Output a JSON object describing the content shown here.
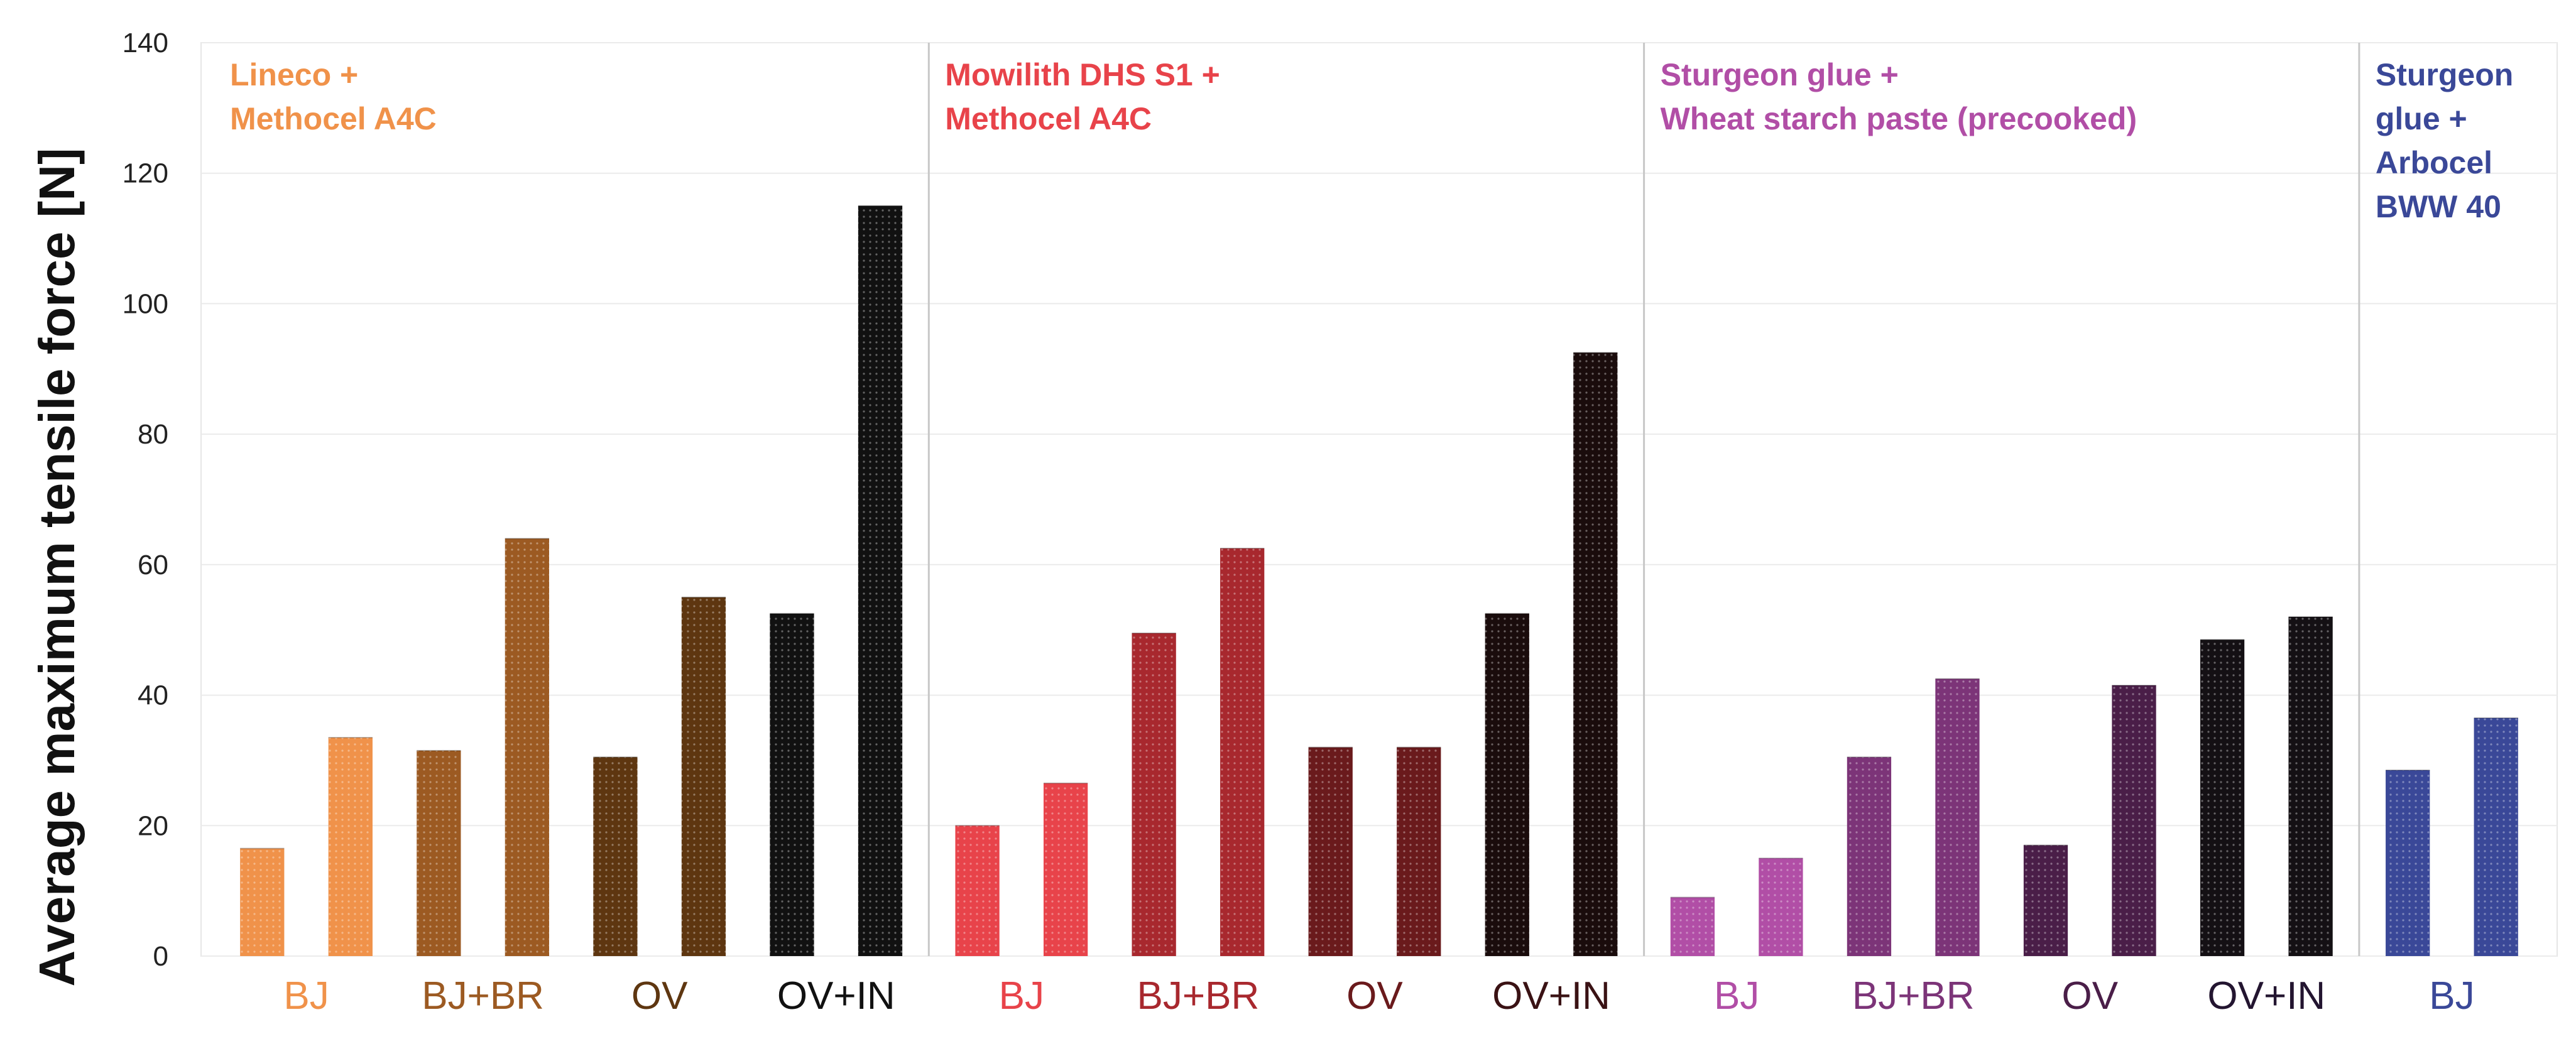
{
  "chart_data": {
    "type": "bar",
    "title": "",
    "ylabel": "Average maximum tensile force [N]",
    "xlabel": "",
    "ylim": [
      0,
      140
    ],
    "yticks": [
      0,
      20,
      40,
      60,
      80,
      100,
      120,
      140
    ],
    "grid": true,
    "panels": [
      {
        "title_lines": [
          "Lineco +",
          "Methocel A4C"
        ],
        "color": "#F0924A",
        "groups": [
          {
            "label": "BJ",
            "label_color": "#F0924A",
            "bars": [
              {
                "value": 16.5,
                "color": "#F0924A"
              },
              {
                "value": 33.5,
                "color": "#F0924A"
              }
            ]
          },
          {
            "label": "BJ+BR",
            "label_color": "#9C5A22",
            "bars": [
              {
                "value": 31.5,
                "color": "#9C5A22"
              },
              {
                "value": 64.0,
                "color": "#9C5A22"
              }
            ]
          },
          {
            "label": "OV",
            "label_color": "#5E3610",
            "bars": [
              {
                "value": 30.5,
                "color": "#5E3610"
              },
              {
                "value": 55.0,
                "color": "#5E3610"
              }
            ]
          },
          {
            "label": "OV+IN",
            "label_color": "#111111",
            "bars": [
              {
                "value": 52.5,
                "color": "#111111"
              },
              {
                "value": 115.0,
                "color": "#111111"
              }
            ]
          }
        ]
      },
      {
        "title_lines": [
          "Mowilith DHS S1 +",
          "Methocel A4C"
        ],
        "color": "#E8434A",
        "groups": [
          {
            "label": "BJ",
            "label_color": "#E8434A",
            "bars": [
              {
                "value": 20.0,
                "color": "#E8434A"
              },
              {
                "value": 26.5,
                "color": "#E8434A"
              }
            ]
          },
          {
            "label": "BJ+BR",
            "label_color": "#A8282E",
            "bars": [
              {
                "value": 49.5,
                "color": "#A8282E"
              },
              {
                "value": 62.5,
                "color": "#A8282E"
              }
            ]
          },
          {
            "label": "OV",
            "label_color": "#6A1A1C",
            "bars": [
              {
                "value": 32.0,
                "color": "#6A1A1C"
              },
              {
                "value": 32.0,
                "color": "#6A1A1C"
              }
            ]
          },
          {
            "label": "OV+IN",
            "label_color": "#3A1214",
            "bars": [
              {
                "value": 52.5,
                "color": "#1A0C0C"
              },
              {
                "value": 92.5,
                "color": "#1A0C0C"
              }
            ]
          }
        ]
      },
      {
        "title_lines": [
          "Sturgeon glue +",
          "Wheat starch paste (precooked)"
        ],
        "color": "#B14EA6",
        "groups": [
          {
            "label": "BJ",
            "label_color": "#B14EA6",
            "bars": [
              {
                "value": 9.0,
                "color": "#B14EA6"
              },
              {
                "value": 15.0,
                "color": "#B14EA6"
              }
            ]
          },
          {
            "label": "BJ+BR",
            "label_color": "#7C3478",
            "bars": [
              {
                "value": 30.5,
                "color": "#7C3478"
              },
              {
                "value": 42.5,
                "color": "#7C3478"
              }
            ]
          },
          {
            "label": "OV",
            "label_color": "#4A1E48",
            "bars": [
              {
                "value": 17.0,
                "color": "#4A1E48"
              },
              {
                "value": 41.5,
                "color": "#4A1E48"
              }
            ]
          },
          {
            "label": "OV+IN",
            "label_color": "#231530",
            "bars": [
              {
                "value": 48.5,
                "color": "#141014"
              },
              {
                "value": 52.0,
                "color": "#141014"
              }
            ]
          }
        ]
      },
      {
        "title_lines": [
          "Sturgeon",
          "glue +",
          "Arbocel",
          "BWW 40"
        ],
        "color": "#3A4898",
        "groups": [
          {
            "label": "BJ",
            "label_color": "#3A4898",
            "bars": [
              {
                "value": 28.5,
                "color": "#3A4898"
              },
              {
                "value": 36.5,
                "color": "#3A4898"
              }
            ]
          }
        ]
      }
    ]
  }
}
